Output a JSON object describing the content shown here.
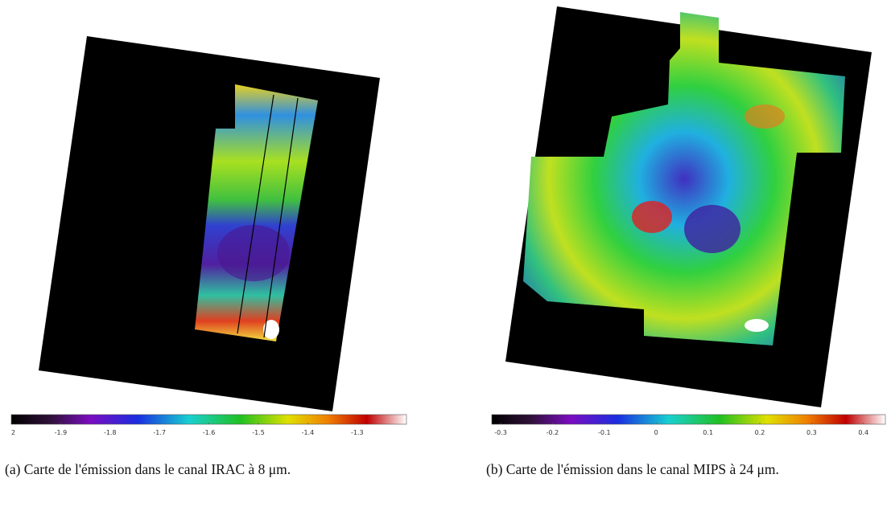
{
  "panels": [
    {
      "colorbar": {
        "ticks": [
          "2",
          "-1.9",
          "-1.8",
          "-1.7",
          "-1.6",
          "-1.5",
          "-1.4",
          "-1.3"
        ]
      },
      "caption": "(a) Carte de l'émission dans le canal IRAC à 8 μm."
    },
    {
      "colorbar": {
        "ticks": [
          "-0.3",
          "-0.2",
          "-0.1",
          "0",
          "0.1",
          "0.2",
          "0.3",
          "0.4"
        ]
      },
      "caption": "(b) Carte de l'émission dans le canal MIPS à 24 μm."
    }
  ]
}
